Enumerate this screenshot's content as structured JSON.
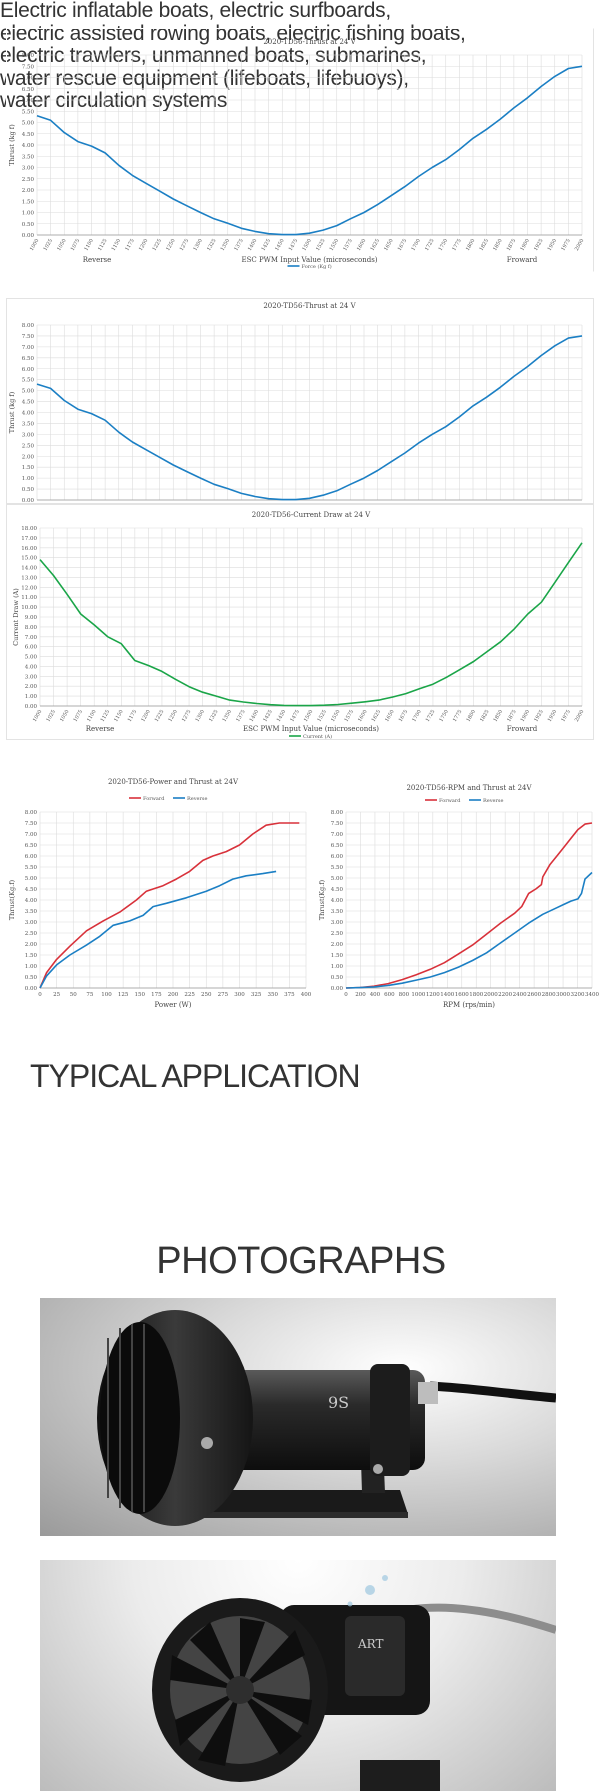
{
  "colors": {
    "blue": "#1b7fc4",
    "green": "#1aa548",
    "red": "#d8313a",
    "grid": "#dcdcdc",
    "axis": "#555555"
  },
  "chart_data": [
    {
      "type": "line",
      "title": "2020-TD56-Thrust at 24 V",
      "xlabel": "ESC PWM Input Value (microseconds)",
      "ylabel": "Thrust (kg f)",
      "x_left_label": "Reverse",
      "x_right_label": "Froward",
      "legend": "bottom",
      "ylim": [
        0,
        8
      ],
      "yticks": [
        "0.00",
        "0.50",
        "1.00",
        "1.50",
        "2.00",
        "2.50",
        "3.00",
        "3.50",
        "4.00",
        "4.50",
        "5.00",
        "5.50",
        "6.00",
        "6.50",
        "7.00",
        "7.50",
        "8.00"
      ],
      "categories": [
        "1000",
        "1025",
        "1050",
        "1075",
        "1100",
        "1125",
        "1150",
        "1175",
        "1200",
        "1225",
        "1250",
        "1275",
        "1300",
        "1325",
        "1350",
        "1375",
        "1400",
        "1425",
        "1450",
        "1475",
        "1500",
        "1525",
        "1550",
        "1575",
        "1600",
        "1625",
        "1650",
        "1675",
        "1700",
        "1725",
        "1750",
        "1775",
        "1800",
        "1825",
        "1850",
        "1875",
        "1900",
        "1925",
        "1950",
        "1975",
        "2000"
      ],
      "series": [
        {
          "name": "Force (Kg f)",
          "color": "#1b7fc4",
          "values": [
            5.3,
            5.1,
            4.55,
            4.15,
            3.95,
            3.65,
            3.1,
            2.65,
            2.3,
            1.95,
            1.6,
            1.3,
            1.0,
            0.72,
            0.52,
            0.3,
            0.16,
            0.06,
            0.02,
            0.02,
            0.08,
            0.22,
            0.42,
            0.72,
            1.0,
            1.35,
            1.75,
            2.15,
            2.6,
            3.0,
            3.35,
            3.8,
            4.3,
            4.7,
            5.15,
            5.65,
            6.1,
            6.6,
            7.05,
            7.4,
            7.5
          ]
        }
      ]
    },
    {
      "type": "line",
      "title": "2020-TD56-Thrust at 24 V",
      "ylabel": "Thrust (kg f)",
      "ylim": [
        0,
        8
      ],
      "yticks": [
        "0.00",
        "0.50",
        "1.00",
        "1.50",
        "2.00",
        "2.50",
        "3.00",
        "3.50",
        "4.00",
        "4.50",
        "5.00",
        "5.50",
        "6.00",
        "6.50",
        "7.00",
        "7.50",
        "8.00"
      ],
      "series": [
        {
          "color": "#1b7fc4",
          "values": [
            5.3,
            5.1,
            4.55,
            4.15,
            3.95,
            3.65,
            3.1,
            2.65,
            2.3,
            1.95,
            1.6,
            1.3,
            1.0,
            0.72,
            0.52,
            0.3,
            0.16,
            0.06,
            0.02,
            0.02,
            0.08,
            0.22,
            0.42,
            0.72,
            1.0,
            1.35,
            1.75,
            2.15,
            2.6,
            3.0,
            3.35,
            3.8,
            4.3,
            4.7,
            5.15,
            5.65,
            6.1,
            6.6,
            7.05,
            7.4,
            7.5
          ]
        }
      ]
    },
    {
      "type": "line",
      "title": "2020-TD56-Current Draw at 24 V",
      "xlabel": "ESC PWM Input Value (microseconds)",
      "ylabel": "Current Draw (A)",
      "x_left_label": "Reverse",
      "x_right_label": "Froward",
      "legend": "bottom",
      "ylim": [
        0,
        18
      ],
      "yticks": [
        "0.00",
        "1.00",
        "2.00",
        "3.00",
        "4.00",
        "5.00",
        "6.00",
        "7.00",
        "8.00",
        "9.00",
        "10.00",
        "11.00",
        "12.00",
        "13.00",
        "14.00",
        "15.00",
        "16.00",
        "17.00",
        "18.00"
      ],
      "categories": [
        "1000",
        "1025",
        "1050",
        "1075",
        "1100",
        "1125",
        "1150",
        "1175",
        "1200",
        "1225",
        "1250",
        "1275",
        "1300",
        "1325",
        "1350",
        "1375",
        "1400",
        "1425",
        "1450",
        "1475",
        "1500",
        "1525",
        "1550",
        "1575",
        "1600",
        "1625",
        "1650",
        "1675",
        "1700",
        "1725",
        "1750",
        "1775",
        "1800",
        "1825",
        "1850",
        "1875",
        "1900",
        "1925",
        "1950",
        "1975",
        "2000"
      ],
      "series": [
        {
          "name": "Current (A)",
          "color": "#1aa548",
          "values": [
            14.8,
            13.2,
            11.3,
            9.3,
            8.2,
            7.0,
            6.3,
            4.6,
            4.1,
            3.5,
            2.7,
            1.95,
            1.4,
            1.0,
            0.6,
            0.4,
            0.25,
            0.13,
            0.06,
            0.04,
            0.04,
            0.08,
            0.15,
            0.28,
            0.42,
            0.6,
            0.9,
            1.25,
            1.75,
            2.2,
            2.9,
            3.7,
            4.5,
            5.5,
            6.5,
            7.8,
            9.3,
            10.5,
            12.5,
            14.5,
            16.5
          ]
        }
      ]
    },
    {
      "type": "line",
      "title": "2020-TD56-Power and Thrust at 24V",
      "xlabel": "Power (W)",
      "ylabel": "Thrust(Kg.f)",
      "legend": "top",
      "xlim": [
        0,
        400
      ],
      "ylim": [
        0,
        8
      ],
      "xticks": [
        "0",
        "25",
        "50",
        "75",
        "100",
        "125",
        "150",
        "175",
        "200",
        "225",
        "250",
        "275",
        "300",
        "325",
        "350",
        "375",
        "400"
      ],
      "yticks": [
        "0.00",
        "0.50",
        "1.00",
        "1.50",
        "2.00",
        "2.50",
        "3.00",
        "3.50",
        "4.00",
        "4.50",
        "5.00",
        "5.50",
        "6.00",
        "6.50",
        "7.00",
        "7.50",
        "8.00"
      ],
      "series": [
        {
          "name": "Forward",
          "color": "#d8313a",
          "x": [
            0,
            10,
            25,
            45,
            70,
            95,
            120,
            145,
            160,
            185,
            205,
            225,
            245,
            260,
            280,
            300,
            320,
            340,
            360,
            390
          ],
          "y": [
            0,
            0.7,
            1.3,
            1.9,
            2.6,
            3.05,
            3.45,
            4.0,
            4.4,
            4.65,
            4.95,
            5.3,
            5.8,
            6.0,
            6.2,
            6.5,
            7.0,
            7.4,
            7.5,
            7.5
          ]
        },
        {
          "name": "Reverse",
          "color": "#1b7fc4",
          "x": [
            0,
            10,
            25,
            45,
            70,
            90,
            110,
            135,
            155,
            170,
            190,
            220,
            250,
            270,
            290,
            310,
            335,
            355
          ],
          "y": [
            0,
            0.55,
            1.05,
            1.5,
            1.95,
            2.35,
            2.85,
            3.05,
            3.3,
            3.7,
            3.85,
            4.1,
            4.4,
            4.65,
            4.95,
            5.1,
            5.2,
            5.3
          ]
        }
      ]
    },
    {
      "type": "line",
      "title": "2020-TD56-RPM and Thrust at 24V",
      "xlabel": "RPM (rps/min)",
      "ylabel": "Thrust(Kg.f)",
      "legend": "top",
      "xlim": [
        0,
        3500
      ],
      "ylim": [
        0,
        8
      ],
      "xticks": [
        "0",
        "200",
        "400",
        "600",
        "800",
        "1000",
        "1200",
        "1400",
        "1600",
        "1800",
        "2000",
        "2200",
        "2400",
        "2600",
        "2800",
        "3000",
        "3200",
        "3400"
      ],
      "yticks": [
        "0.00",
        "0.50",
        "1.00",
        "1.50",
        "2.00",
        "2.50",
        "3.00",
        "3.50",
        "4.00",
        "4.50",
        "5.00",
        "5.50",
        "6.00",
        "6.50",
        "7.00",
        "7.50",
        "8.00"
      ],
      "series": [
        {
          "name": "Forward",
          "color": "#d8313a",
          "x": [
            0,
            200,
            400,
            600,
            800,
            1000,
            1200,
            1400,
            1600,
            1800,
            2000,
            2200,
            2400,
            2500,
            2600,
            2700,
            2780,
            2800,
            2900,
            3000,
            3100,
            3200,
            3300,
            3400,
            3500
          ],
          "y": [
            0,
            0.02,
            0.08,
            0.2,
            0.38,
            0.6,
            0.85,
            1.15,
            1.55,
            1.95,
            2.45,
            2.95,
            3.4,
            3.7,
            4.3,
            4.5,
            4.7,
            5.05,
            5.6,
            6.0,
            6.4,
            6.8,
            7.2,
            7.45,
            7.5
          ]
        },
        {
          "name": "Reverse",
          "color": "#1b7fc4",
          "x": [
            0,
            200,
            400,
            600,
            800,
            1000,
            1200,
            1400,
            1600,
            1800,
            2000,
            2200,
            2400,
            2600,
            2800,
            3000,
            3100,
            3200,
            3300,
            3350,
            3400,
            3500
          ],
          "y": [
            0,
            0.02,
            0.05,
            0.12,
            0.22,
            0.36,
            0.5,
            0.7,
            0.95,
            1.25,
            1.6,
            2.05,
            2.5,
            2.95,
            3.35,
            3.65,
            3.8,
            3.95,
            4.05,
            4.3,
            4.95,
            5.25
          ]
        }
      ]
    }
  ],
  "typical_application": {
    "heading": "TYPICAL APPLICATION",
    "body": "Electric inflatable boats, electric surfboards,\nelectric assisted rowing boats, electric fishing boats,\nelectric trawlers, unmanned boats, submarines,\nwater rescue equipment (lifeboats, lifebuoys),\nwater circulation systems"
  },
  "photographs": {
    "heading": "PHOTOGRAPHS",
    "label1": "9S",
    "label2": "ART"
  }
}
